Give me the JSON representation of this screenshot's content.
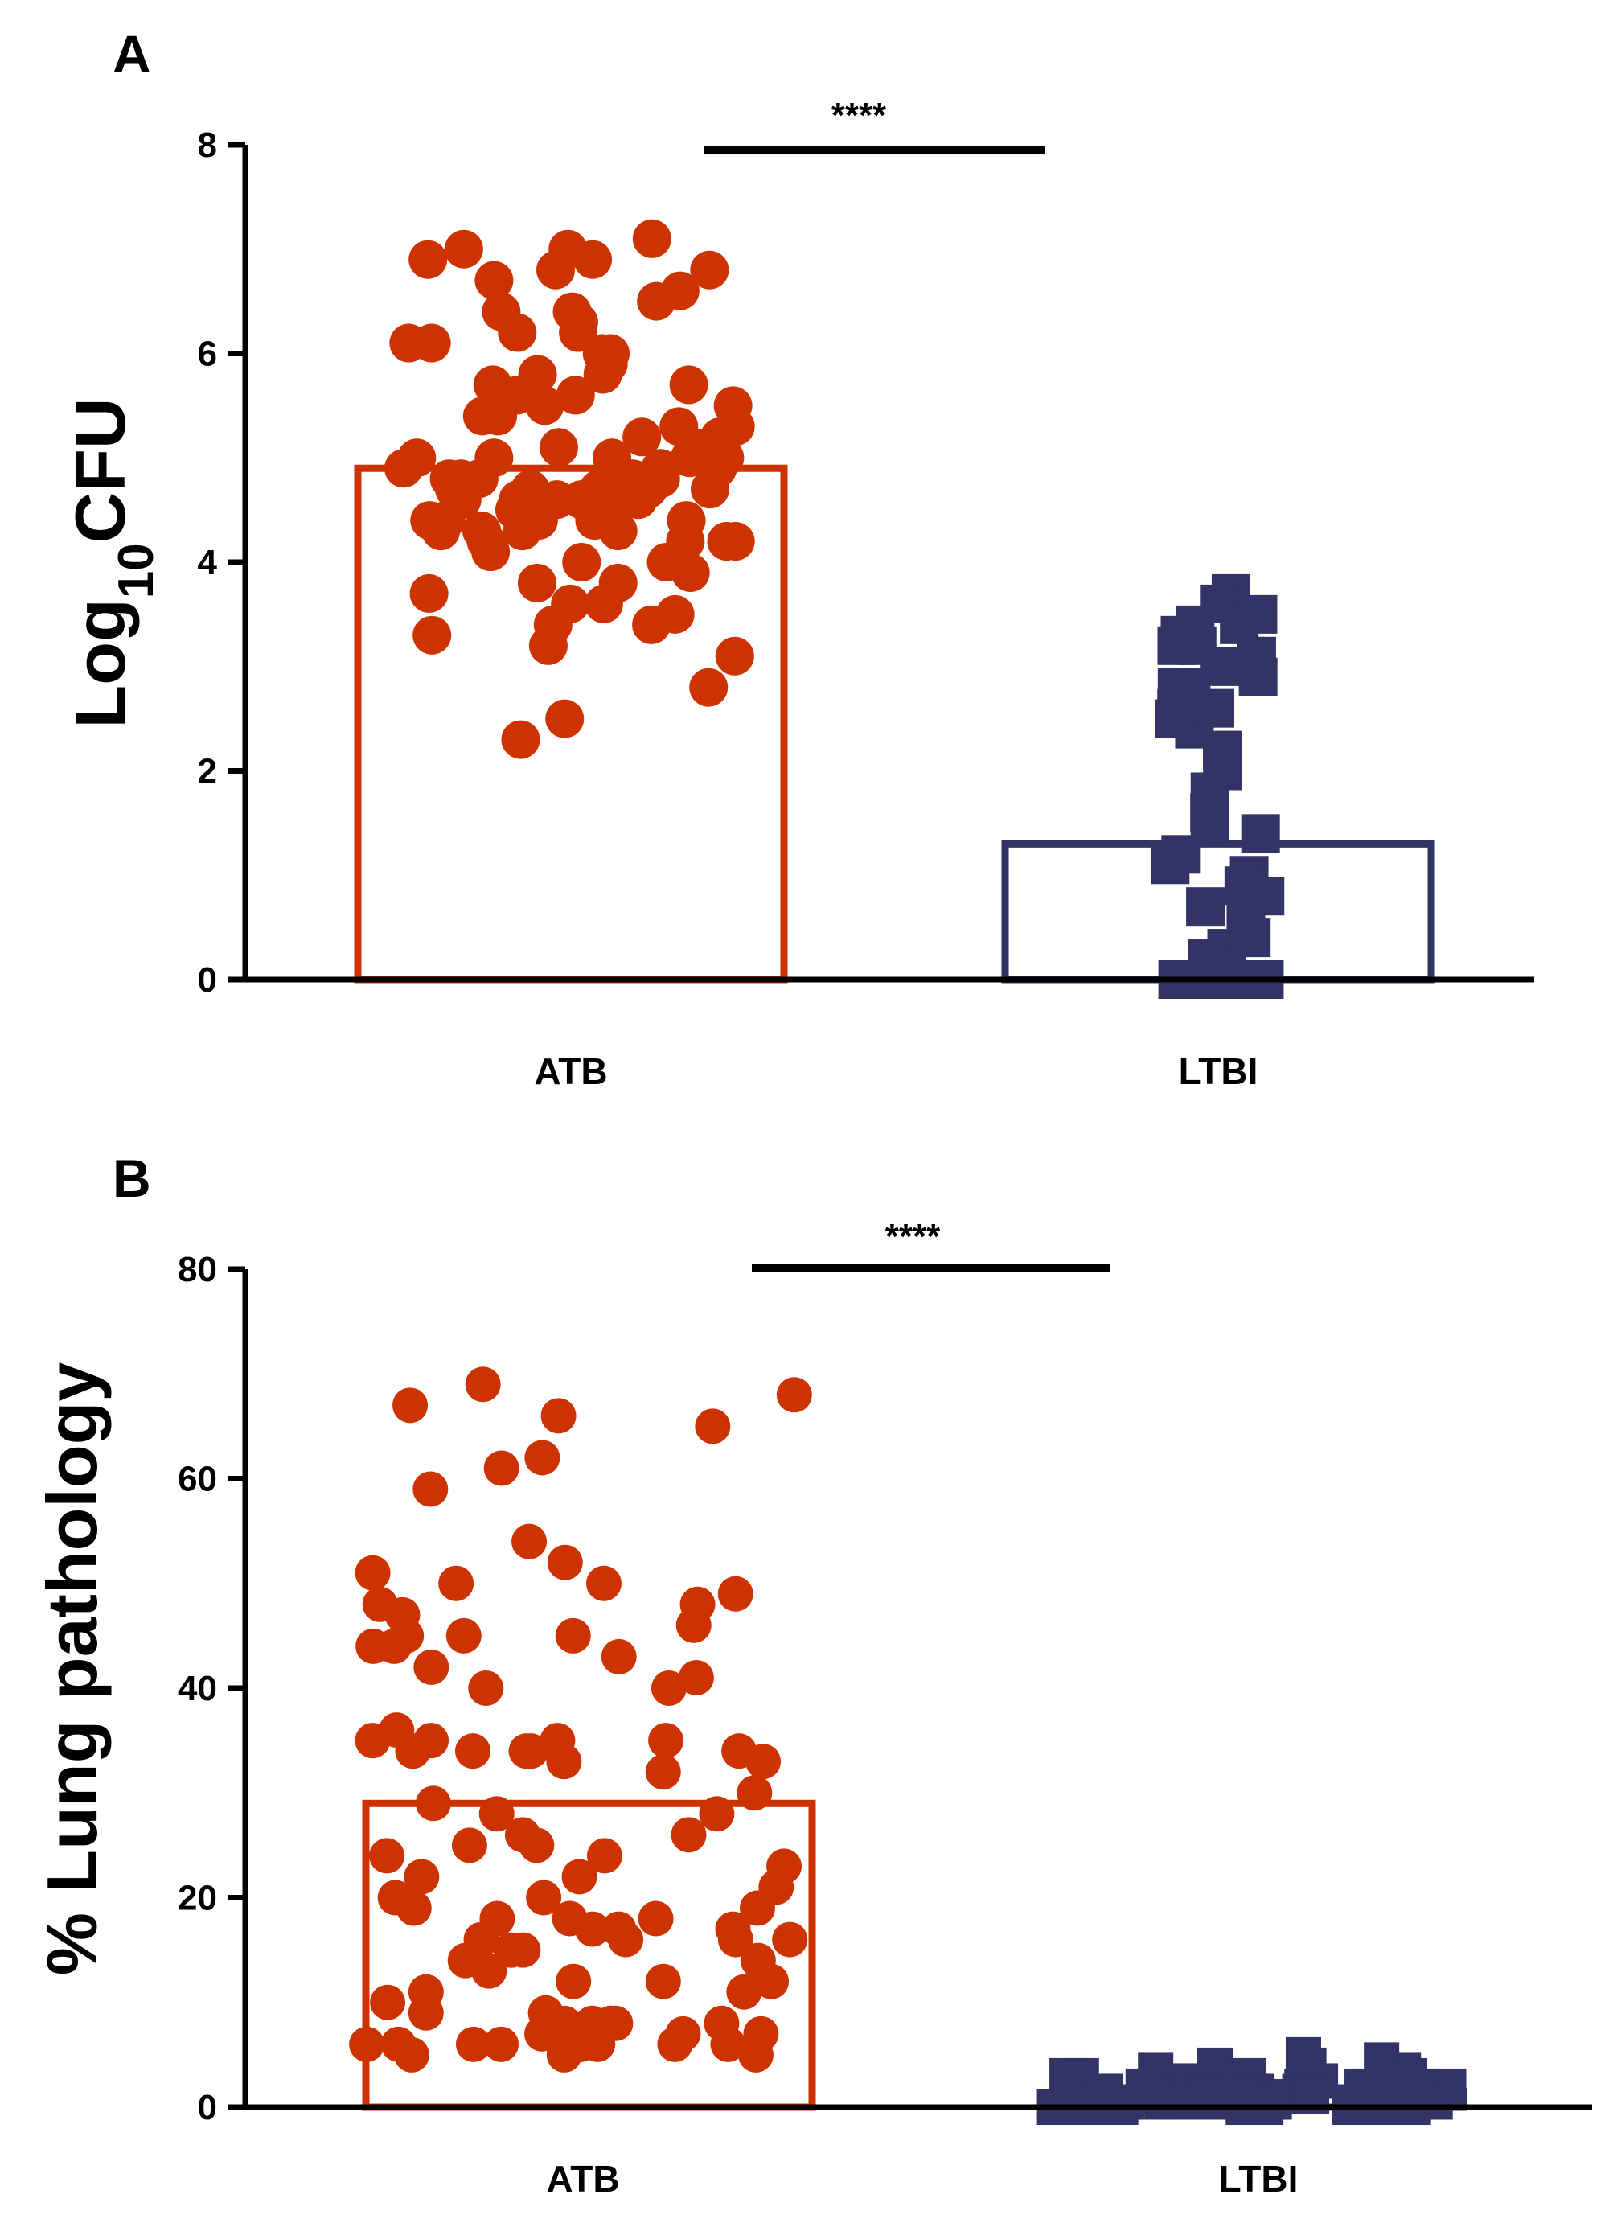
{
  "chart_data": [
    {
      "panel": "A",
      "type": "scatter",
      "ylabel": "Log",
      "ylabel_sub": "10",
      "ylabel_suffix": "CFU",
      "ylim": [
        0,
        8
      ],
      "yticks": [
        0,
        2,
        4,
        6,
        8
      ],
      "categories": [
        "ATB",
        "LTBI"
      ],
      "bar_values": [
        4.9,
        1.3
      ],
      "significance": "****",
      "colors": {
        "ATB": "#cc3300",
        "LTBI": "#333366"
      },
      "series": [
        {
          "category": "ATB",
          "marker": "circle",
          "values": [
            7.0,
            7.1,
            6.9,
            6.8,
            6.7,
            6.6,
            6.5,
            6.4,
            6.3,
            6.2,
            6.1,
            6.0,
            5.9,
            5.8,
            5.7,
            5.6,
            5.5,
            5.4,
            5.3,
            5.2,
            5.1,
            5.0,
            5.0,
            4.9,
            4.9,
            4.8,
            4.8,
            4.7,
            4.7,
            4.6,
            4.6,
            4.5,
            4.5,
            4.4,
            4.4,
            4.3,
            4.3,
            4.2,
            4.2,
            4.1,
            4.0,
            3.9,
            3.8,
            3.7,
            3.6,
            3.5,
            3.4,
            3.3,
            3.2,
            3.1,
            2.8,
            2.5,
            2.3,
            7.0,
            6.9,
            6.8,
            6.4,
            6.2,
            6.0,
            5.8,
            5.6,
            5.4,
            5.2,
            5.0,
            4.8,
            4.6,
            4.4,
            4.2,
            4.0,
            3.8,
            3.6,
            3.4,
            5.1,
            4.9,
            4.7,
            4.5,
            4.3,
            5.3,
            5.5,
            5.7,
            6.1,
            4.6,
            4.7,
            4.8,
            4.9,
            5.0,
            4.5,
            4.4,
            4.6,
            4.7,
            4.8,
            5.0,
            4.9,
            4.5,
            4.6,
            4.4,
            4.3,
            4.2
          ]
        },
        {
          "category": "LTBI",
          "marker": "square",
          "values": [
            3.7,
            3.6,
            3.5,
            3.4,
            3.3,
            3.2,
            3.1,
            3.0,
            2.9,
            2.8,
            2.7,
            2.6,
            2.5,
            2.4,
            2.2,
            2.0,
            1.8,
            1.6,
            1.4,
            1.2,
            1.0,
            0.9,
            0.8,
            0.6,
            0.4,
            0.3,
            0.2,
            0.1,
            0,
            0,
            0,
            0,
            0,
            0,
            0,
            0,
            0,
            0,
            0,
            0,
            0,
            0,
            0,
            0,
            0,
            0,
            0,
            0,
            0,
            0,
            3.4,
            3.2,
            3.0,
            2.8,
            2.6,
            1.5,
            1.1,
            0.7
          ]
        }
      ]
    },
    {
      "panel": "B",
      "type": "scatter",
      "ylabel": "% Lung pathology",
      "ylim": [
        0,
        80
      ],
      "yticks": [
        0,
        20,
        40,
        60,
        80
      ],
      "categories": [
        "ATB",
        "LTBI"
      ],
      "bar_values": [
        29,
        1.5
      ],
      "significance": "****",
      "colors": {
        "ATB": "#cc3300",
        "LTBI": "#333366"
      },
      "series": [
        {
          "category": "ATB",
          "marker": "circle",
          "values": [
            69,
            68,
            67,
            66,
            65,
            62,
            61,
            59,
            54,
            52,
            51,
            50,
            50,
            49,
            48,
            48,
            47,
            46,
            45,
            45,
            45,
            44,
            44,
            43,
            42,
            41,
            40,
            40,
            36,
            35,
            35,
            35,
            35,
            34,
            34,
            34,
            34,
            34,
            33,
            33,
            32,
            30,
            29,
            28,
            28,
            26,
            26,
            25,
            25,
            24,
            24,
            23,
            22,
            22,
            21,
            20,
            20,
            19,
            19,
            18,
            18,
            18,
            17,
            17,
            17,
            16,
            16,
            16,
            16,
            15,
            15,
            14,
            14,
            13,
            12,
            12,
            12,
            11,
            11,
            10,
            9,
            9,
            8,
            8,
            8,
            8,
            8,
            7,
            7,
            7,
            6,
            6,
            6,
            6,
            6,
            6,
            6,
            6,
            6,
            5,
            5,
            5
          ]
        },
        {
          "category": "LTBI",
          "marker": "square",
          "values": [
            5,
            4.5,
            4,
            4,
            3.5,
            3.5,
            3,
            3,
            3,
            3,
            2.5,
            2.5,
            2.5,
            2.5,
            2,
            2,
            2,
            2,
            2,
            2,
            1.5,
            1.5,
            1.5,
            1.5,
            1.5,
            1.5,
            1,
            1,
            1,
            1,
            1,
            1,
            1,
            1,
            0.5,
            0.5,
            0.5,
            0.5,
            0.5,
            0.5,
            0.5,
            0.5,
            0,
            0,
            0,
            0,
            0,
            0,
            0,
            0,
            0,
            0,
            0,
            0,
            0,
            0
          ]
        }
      ]
    }
  ]
}
